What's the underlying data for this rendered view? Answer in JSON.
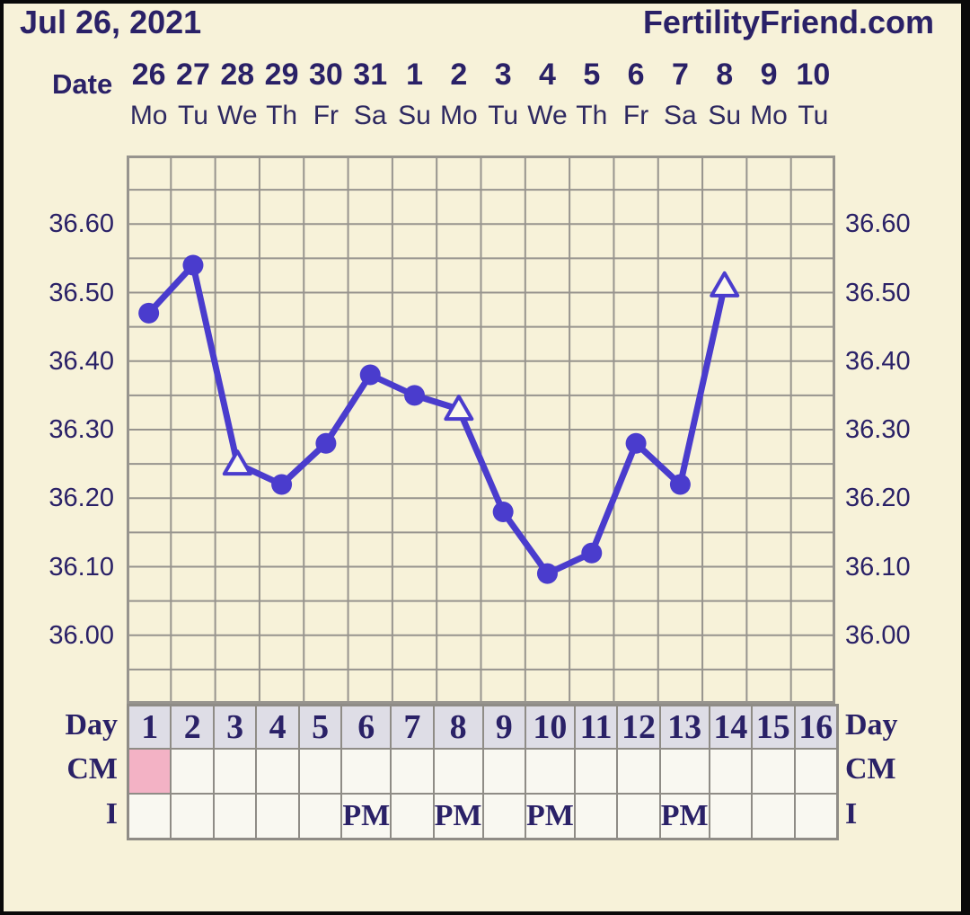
{
  "header": {
    "title_date": "Jul 26, 2021",
    "site": "FertilityFriend.com",
    "date_axis_label": "Date"
  },
  "row_labels": {
    "day": "Day",
    "cm": "CM",
    "i": "I"
  },
  "colors": {
    "background": "#f7f2d9",
    "text_navy": "#2a2167",
    "line_purple": "#4a3ccd",
    "grid_gray": "#97948e",
    "day_row_bg": "#dedde6",
    "cell_bg": "#f9f8f1",
    "cm_pink": "#f3b2c5",
    "triangle_fill": "#fcf9ec"
  },
  "chart_data": {
    "type": "line",
    "title": "Basal body temperature chart starting Jul 26, 2021",
    "unit": "°C",
    "ylim": [
      35.9,
      36.7
    ],
    "grid_step": 0.05,
    "yticks": [
      "36.60",
      "36.50",
      "36.40",
      "36.30",
      "36.20",
      "36.10",
      "36.00"
    ],
    "legend_position": "none",
    "grid": true,
    "series_name": "temperature",
    "days": [
      {
        "day": "1",
        "date": "26",
        "weekday": "Mo",
        "temp": 36.47,
        "marker": "circle",
        "cm": "pink",
        "i": ""
      },
      {
        "day": "2",
        "date": "27",
        "weekday": "Tu",
        "temp": 36.54,
        "marker": "circle",
        "cm": "",
        "i": ""
      },
      {
        "day": "3",
        "date": "28",
        "weekday": "We",
        "temp": 36.25,
        "marker": "triangle",
        "cm": "",
        "i": ""
      },
      {
        "day": "4",
        "date": "29",
        "weekday": "Th",
        "temp": 36.22,
        "marker": "circle",
        "cm": "",
        "i": ""
      },
      {
        "day": "5",
        "date": "30",
        "weekday": "Fr",
        "temp": 36.28,
        "marker": "circle",
        "cm": "",
        "i": ""
      },
      {
        "day": "6",
        "date": "31",
        "weekday": "Sa",
        "temp": 36.38,
        "marker": "circle",
        "cm": "",
        "i": "PM"
      },
      {
        "day": "7",
        "date": "1",
        "weekday": "Su",
        "temp": 36.35,
        "marker": "circle",
        "cm": "",
        "i": ""
      },
      {
        "day": "8",
        "date": "2",
        "weekday": "Mo",
        "temp": 36.33,
        "marker": "triangle",
        "cm": "",
        "i": "PM"
      },
      {
        "day": "9",
        "date": "3",
        "weekday": "Tu",
        "temp": 36.18,
        "marker": "circle",
        "cm": "",
        "i": ""
      },
      {
        "day": "10",
        "date": "4",
        "weekday": "We",
        "temp": 36.09,
        "marker": "circle",
        "cm": "",
        "i": "PM"
      },
      {
        "day": "11",
        "date": "5",
        "weekday": "Th",
        "temp": 36.12,
        "marker": "circle",
        "cm": "",
        "i": ""
      },
      {
        "day": "12",
        "date": "6",
        "weekday": "Fr",
        "temp": 36.28,
        "marker": "circle",
        "cm": "",
        "i": ""
      },
      {
        "day": "13",
        "date": "7",
        "weekday": "Sa",
        "temp": 36.22,
        "marker": "circle",
        "cm": "",
        "i": "PM"
      },
      {
        "day": "14",
        "date": "8",
        "weekday": "Su",
        "temp": 36.51,
        "marker": "triangle",
        "cm": "",
        "i": ""
      },
      {
        "day": "15",
        "date": "9",
        "weekday": "Mo",
        "temp": null,
        "marker": "",
        "cm": "",
        "i": ""
      },
      {
        "day": "16",
        "date": "10",
        "weekday": "Tu",
        "temp": null,
        "marker": "",
        "cm": "",
        "i": ""
      }
    ]
  }
}
